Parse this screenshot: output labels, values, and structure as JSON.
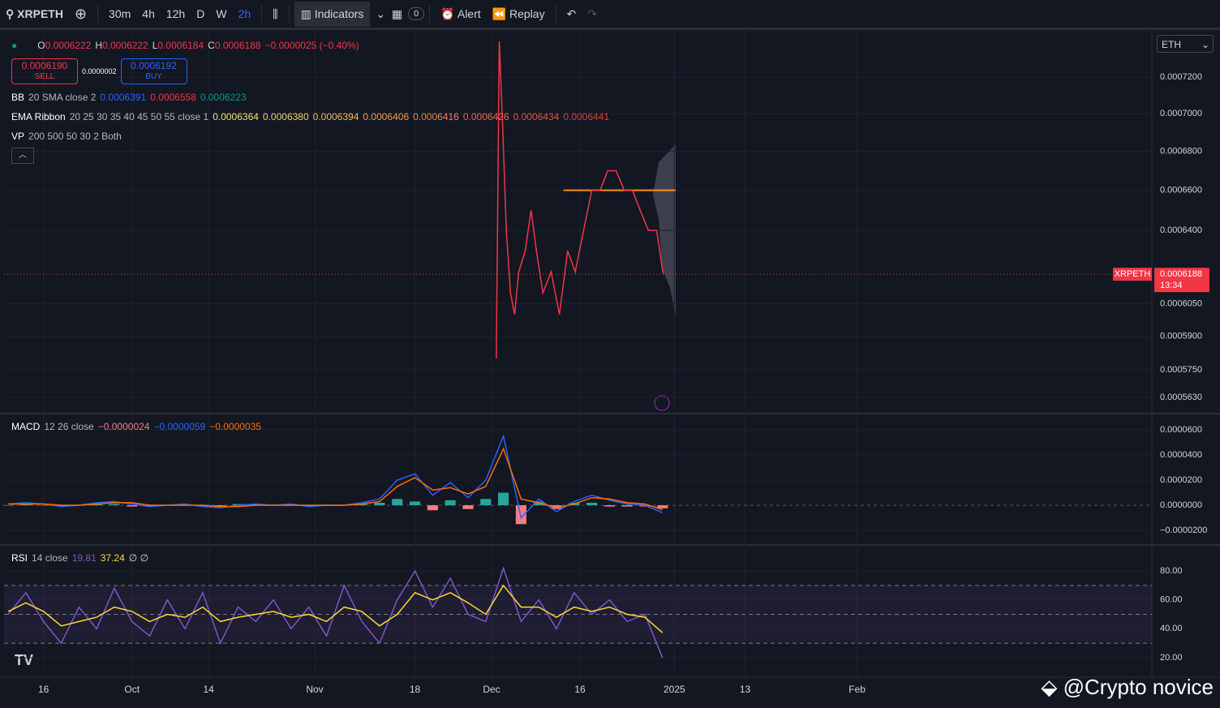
{
  "toolbar": {
    "symbol": "XRPETH",
    "intervals": [
      "30m",
      "4h",
      "12h",
      "D",
      "W",
      "2h"
    ],
    "indicators": "Indicators",
    "badge": "0",
    "alert": "Alert",
    "replay": "Replay"
  },
  "legend": {
    "ohlc": [
      {
        "label": "O",
        "value": "0.0006222"
      },
      {
        "label": "H",
        "value": "0.0006222"
      },
      {
        "label": "L",
        "value": "0.0006184"
      },
      {
        "label": "C",
        "value": "0.0006188"
      }
    ],
    "change": "−0.0000025 (−0.40%)",
    "sell_price": "0.0006190",
    "sell": "SELL",
    "spread": "0.0000002",
    "buy_price": "0.0006192",
    "buy": "BUY",
    "indicators": [
      {
        "name": "BB",
        "params": "20 SMA close 2",
        "values": [
          "0.0006391",
          "0.0006558",
          "0.0006223"
        ],
        "colors": [
          "#2962ff",
          "#f23645",
          "#089981"
        ]
      },
      {
        "name": "EMA Ribbon",
        "params": "20 25 30 35 40 45 50 55 close 1",
        "values": [
          "0.0006364",
          "0.0006380",
          "0.0006394",
          "0.0006406",
          "0.0006416",
          "0.0006426",
          "0.0006434",
          "0.0006441"
        ],
        "colors": [
          "#f5e663",
          "#f5d36e",
          "#f4b95e",
          "#f19d55",
          "#ee8450",
          "#ea6b4b",
          "#e55447",
          "#d84040"
        ]
      },
      {
        "name": "VP",
        "params": "200 500 50 30 2 Both",
        "values": [],
        "colors": []
      }
    ]
  },
  "currency": "ETH",
  "watermark": "@Crypto novice",
  "chart_data": [
    {
      "type": "line",
      "log_scale": true,
      "grid": true,
      "xlim": [
        -6.7,
        188
      ],
      "ylim": [
        0.000556,
        0.000746
      ],
      "xticks": [
        {
          "value": 0,
          "label": "16"
        },
        {
          "value": 15,
          "label": "Oct"
        },
        {
          "value": 28,
          "label": "14"
        },
        {
          "value": 46,
          "label": "Nov"
        },
        {
          "value": 63,
          "label": "18"
        },
        {
          "value": 76,
          "label": "Dec"
        },
        {
          "value": 91,
          "label": "16"
        },
        {
          "value": 107,
          "label": "2025"
        },
        {
          "value": 119,
          "label": "13"
        },
        {
          "value": 138,
          "label": "Feb"
        }
      ],
      "yticks": [
        {
          "value": 0.00072,
          "label": "0.0007200"
        },
        {
          "value": 0.0007,
          "label": "0.0007000"
        },
        {
          "value": 0.00068,
          "label": "0.0006800"
        },
        {
          "value": 0.00066,
          "label": "0.0006600"
        },
        {
          "value": 0.00064,
          "label": "0.0006400"
        },
        {
          "value": 0.000605,
          "label": "0.0006050"
        },
        {
          "value": 0.00059,
          "label": "0.0005900"
        },
        {
          "value": 0.000575,
          "label": "0.0005750"
        },
        {
          "value": 0.000563,
          "label": "0.0005630"
        }
      ],
      "x": [
        76.8,
        77.3,
        77.8,
        78.5,
        79.2,
        79.9,
        80.6,
        81.7,
        82.7,
        83.6,
        84.7,
        86.1,
        87.5,
        88.9,
        90.2,
        91.6,
        93.0,
        94.4,
        95.7,
        97.1,
        98.5,
        99.9,
        101.2,
        102.6,
        104.0,
        105.1
      ],
      "series": [
        {
          "name": "XRPETH",
          "color": "#f23645",
          "values": [
            0.00058,
            0.00074,
            0.0007,
            0.00064,
            0.00061,
            0.0006,
            0.00062,
            0.00063,
            0.00065,
            0.00063,
            0.00061,
            0.00062,
            0.0006,
            0.00063,
            0.00062,
            0.00064,
            0.00066,
            0.00066,
            0.00067,
            0.00067,
            0.00066,
            0.00066,
            0.00065,
            0.00064,
            0.00064,
            0.0006188
          ]
        }
      ],
      "last_price": {
        "value": 0.0006188,
        "label": "0.0006188"
      },
      "last_time": "13:34",
      "poc": {
        "value": 0.00066,
        "x": [
          88.2,
          107.2
        ],
        "color": "#f7931a"
      }
    },
    {
      "type": "line",
      "grid": true,
      "title": "MACD",
      "params": "12 26 close",
      "xlim": [
        -6.7,
        188
      ],
      "ylim": [
        -3.16e-05,
        7.29e-05
      ],
      "yticks": [
        {
          "value": 6e-05,
          "label": "0.0000600"
        },
        {
          "value": 4e-05,
          "label": "0.0000400"
        },
        {
          "value": 2e-05,
          "label": "0.0000200"
        },
        {
          "value": 0,
          "label": "0.0000000"
        },
        {
          "value": -2e-05,
          "label": "−0.0000200"
        }
      ],
      "x": [
        -6,
        -3,
        0,
        3,
        6,
        9,
        12,
        15,
        18,
        21,
        24,
        27,
        30,
        33,
        36,
        39,
        42,
        45,
        48,
        51,
        54,
        57,
        60,
        63,
        66,
        69,
        72,
        75,
        78,
        81,
        84,
        87,
        90,
        93,
        96,
        99,
        102,
        105
      ],
      "series": [
        {
          "name": "Histogram",
          "type": "bar",
          "color": "#26a69a",
          "negative_color": "#f77c80",
          "value_label": "−0.0000024",
          "values": [
            0,
            1e-06,
            0,
            -1e-06,
            0,
            1e-06,
            1e-06,
            -1e-06,
            -1e-06,
            0,
            1e-06,
            -1e-06,
            -1e-06,
            1e-06,
            1e-06,
            0,
            1e-06,
            -1e-06,
            0,
            0,
            1e-06,
            2e-06,
            5e-06,
            3e-06,
            -4e-06,
            4e-06,
            -3e-06,
            5e-06,
            1e-05,
            -1.5e-05,
            3e-06,
            -3e-06,
            2e-06,
            2e-06,
            -1e-06,
            -1e-06,
            -1e-06,
            -2.4e-06
          ]
        },
        {
          "name": "MACD",
          "color": "#2962ff",
          "value_label": "−0.0000059",
          "values": [
            1e-06,
            2e-06,
            1e-06,
            -1e-06,
            0,
            2e-06,
            3e-06,
            1e-06,
            -1e-06,
            0,
            1e-06,
            -1e-06,
            -2e-06,
            0,
            1e-06,
            0,
            1e-06,
            -1e-06,
            0,
            0,
            2e-06,
            5e-06,
            2e-05,
            2.5e-05,
            8e-06,
            1.8e-05,
            6e-06,
            2e-05,
            5.5e-05,
            -1e-05,
            5e-06,
            -5e-06,
            3e-06,
            8e-06,
            4e-06,
            1e-06,
            0,
            -5.9e-06
          ]
        },
        {
          "name": "Signal",
          "color": "#ff6d00",
          "value_label": "−0.0000035",
          "values": [
            1e-06,
            1e-06,
            1e-06,
            0,
            0,
            1e-06,
            2e-06,
            2e-06,
            0,
            0,
            0,
            0,
            -1e-06,
            -1e-06,
            0,
            0,
            0,
            0,
            0,
            0,
            1e-06,
            3e-06,
            1.5e-05,
            2.2e-05,
            1.2e-05,
            1.4e-05,
            9e-06,
            1.5e-05,
            4.5e-05,
            5e-06,
            2e-06,
            -2e-06,
            1e-06,
            6e-06,
            5e-06,
            2e-06,
            1e-06,
            -3.5e-06
          ]
        }
      ]
    },
    {
      "type": "line",
      "grid": true,
      "title": "RSI",
      "params": "14 close",
      "suffix": "∅ ∅",
      "xlim": [
        -6.7,
        188
      ],
      "ylim": [
        6.5,
        98
      ],
      "yticks": [
        {
          "value": 80,
          "label": "80.00"
        },
        {
          "value": 60,
          "label": "60.00"
        },
        {
          "value": 40,
          "label": "40.00"
        },
        {
          "value": 20,
          "label": "20.00"
        }
      ],
      "bands": [
        70,
        50,
        30
      ],
      "x": [
        -6,
        -3,
        0,
        3,
        6,
        9,
        12,
        15,
        18,
        21,
        24,
        27,
        30,
        33,
        36,
        39,
        42,
        45,
        48,
        51,
        54,
        57,
        60,
        63,
        66,
        69,
        72,
        75,
        78,
        81,
        84,
        87,
        90,
        93,
        96,
        99,
        102,
        105
      ],
      "series": [
        {
          "name": "RSI",
          "color": "#7e57c2",
          "values": [
            50,
            65,
            45,
            30,
            55,
            40,
            68,
            45,
            35,
            60,
            40,
            65,
            30,
            55,
            45,
            60,
            40,
            55,
            35,
            70,
            45,
            30,
            60,
            80,
            55,
            75,
            50,
            45,
            82,
            45,
            60,
            40,
            65,
            50,
            60,
            45,
            50,
            19.81
          ]
        },
        {
          "name": "RSI MA",
          "color": "#fdd835",
          "values": [
            52,
            58,
            52,
            42,
            45,
            48,
            55,
            52,
            45,
            50,
            48,
            55,
            45,
            48,
            50,
            52,
            48,
            50,
            45,
            55,
            52,
            42,
            50,
            65,
            60,
            65,
            58,
            50,
            70,
            55,
            55,
            48,
            55,
            52,
            55,
            50,
            48,
            37.24
          ]
        }
      ]
    }
  ]
}
